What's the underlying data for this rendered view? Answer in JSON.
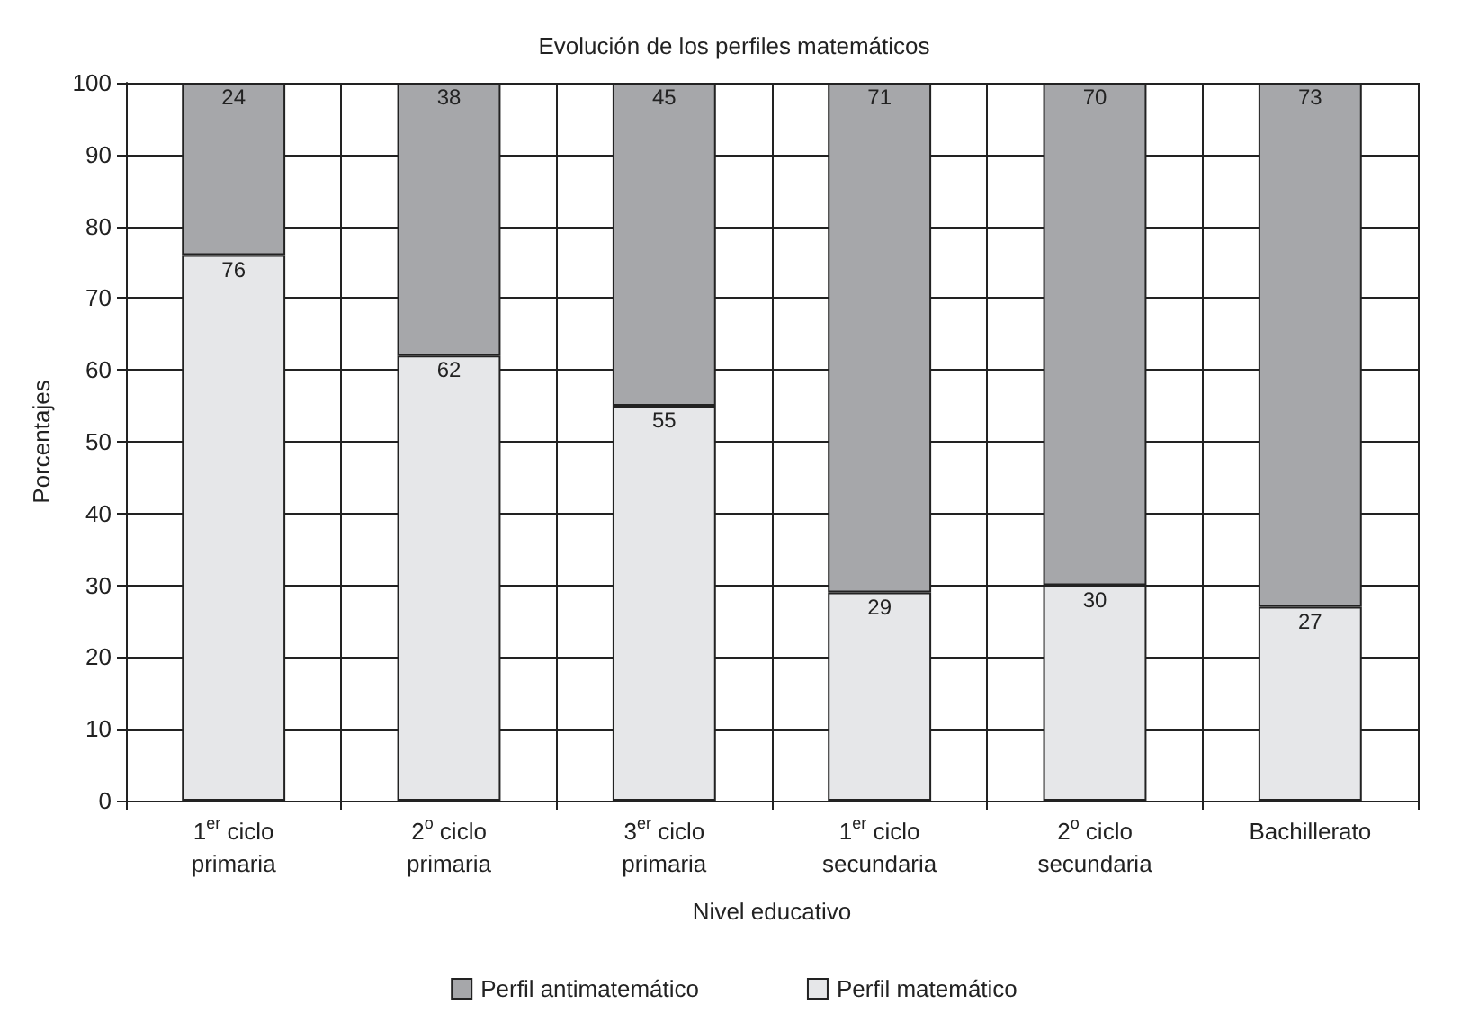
{
  "chart_data": {
    "type": "bar",
    "title": "Evolución de los perfiles matemáticos",
    "xlabel": "Nivel educativo",
    "ylabel": "Porcentajes",
    "categories": [
      "1$^{er}$ ciclo\nprimaria",
      "2$^{o}$ ciclo\nprimaria",
      "3$^{er}$ ciclo\nprimaria",
      "1$^{er}$ ciclo\nsecundaria",
      "2$^{o}$ ciclo\nsecundaria",
      "Bachillerato"
    ],
    "series": [
      {
        "name": "Perfil matemático",
        "color": "#e6e7e9",
        "values": [
          76,
          62,
          55,
          29,
          30,
          27
        ]
      },
      {
        "name": "Perfil antimatemático",
        "color": "#a6a7aa",
        "values": [
          24,
          38,
          45,
          71,
          70,
          73
        ]
      }
    ],
    "stacked": true,
    "data_labels": true,
    "ylim": [
      0,
      100
    ],
    "yticks": [
      0,
      10,
      20,
      30,
      40,
      50,
      60,
      70,
      80,
      90,
      100
    ],
    "grid": true,
    "legend": "bottom"
  }
}
